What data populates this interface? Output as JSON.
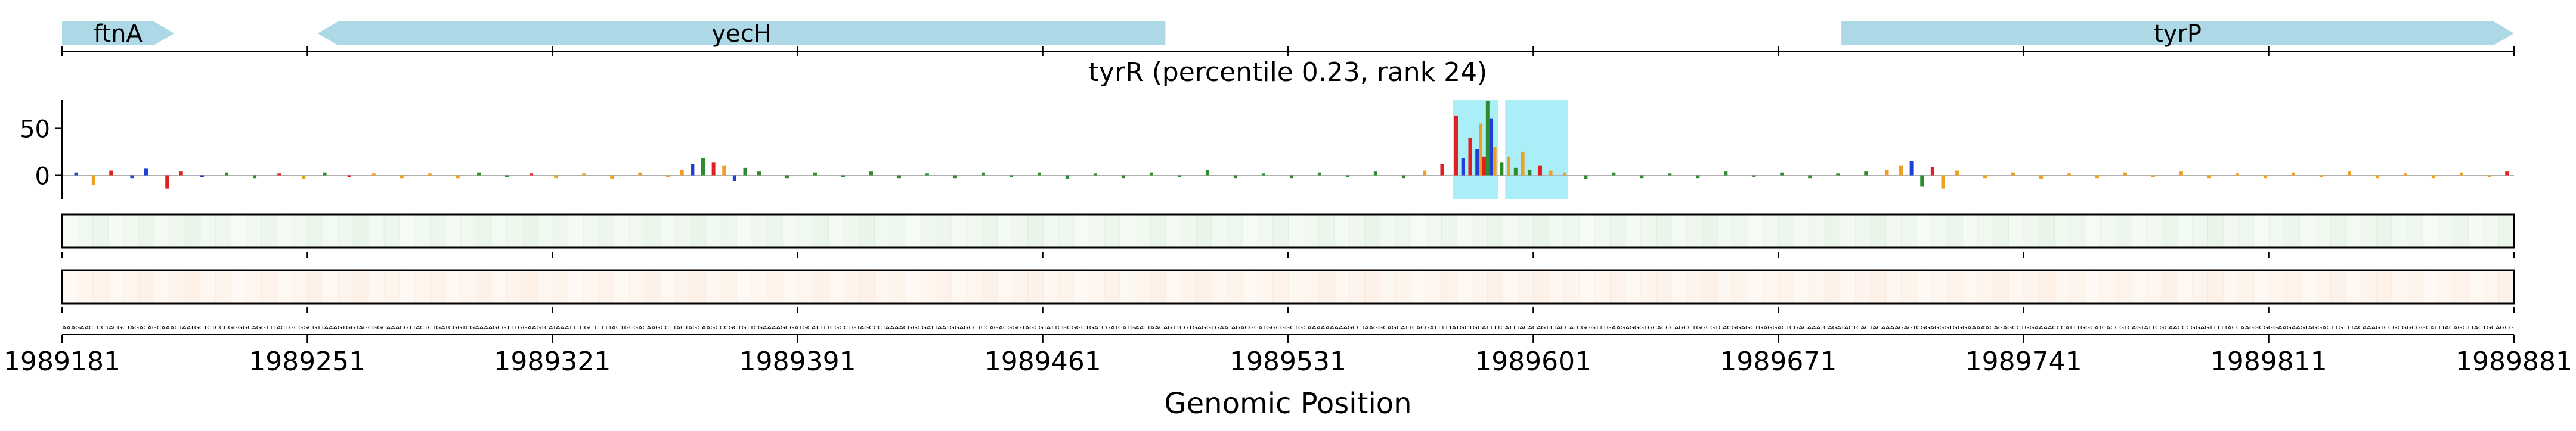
{
  "chart_data": {
    "type": "line",
    "title": "tyrR (percentile 0.23, rank 24)",
    "xlabel": "Genomic Position",
    "ylabel": "",
    "xlim": [
      1989181,
      1989881
    ],
    "ylim": [
      -25,
      80
    ],
    "x_ticks": [
      1989181,
      1989251,
      1989321,
      1989391,
      1989461,
      1989531,
      1989601,
      1989671,
      1989741,
      1989811,
      1989881
    ],
    "x_tick_labels": [
      "1989181",
      "1989251",
      "1989321",
      "1989391",
      "1989461",
      "1989531",
      "1989601",
      "1989671",
      "1989741",
      "1989811",
      "1989881"
    ],
    "y_ticks": [
      0,
      50
    ],
    "y_tick_labels": [
      "0",
      "50"
    ],
    "genes": [
      {
        "name": "ftnA",
        "start": 1989181,
        "end": 1989213,
        "strand": "+"
      },
      {
        "name": "yecH",
        "start": 1989254,
        "end": 1989496,
        "strand": "-"
      },
      {
        "name": "tyrP",
        "start": 1989689,
        "end": 1989881,
        "strand": "+"
      }
    ],
    "highlight_regions": [
      {
        "start": 1989578,
        "end": 1989591
      },
      {
        "start": 1989593,
        "end": 1989611
      }
    ],
    "series": [
      {
        "name": "attribution",
        "x": [
          1989185,
          1989190,
          1989195,
          1989201,
          1989205,
          1989211,
          1989215,
          1989221,
          1989228,
          1989236,
          1989243,
          1989250,
          1989256,
          1989263,
          1989270,
          1989278,
          1989286,
          1989294,
          1989300,
          1989308,
          1989315,
          1989322,
          1989330,
          1989338,
          1989346,
          1989354,
          1989358,
          1989361,
          1989364,
          1989367,
          1989370,
          1989373,
          1989376,
          1989380,
          1989388,
          1989396,
          1989404,
          1989412,
          1989420,
          1989428,
          1989436,
          1989444,
          1989452,
          1989460,
          1989468,
          1989476,
          1989484,
          1989492,
          1989500,
          1989508,
          1989516,
          1989524,
          1989532,
          1989540,
          1989548,
          1989556,
          1989564,
          1989570,
          1989575,
          1989579,
          1989581,
          1989583,
          1989585,
          1989586,
          1989587,
          1989588,
          1989589,
          1989590,
          1989592,
          1989594,
          1989596,
          1989598,
          1989600,
          1989603,
          1989606,
          1989610,
          1989616,
          1989624,
          1989632,
          1989640,
          1989648,
          1989656,
          1989664,
          1989672,
          1989680,
          1989688,
          1989696,
          1989702,
          1989706,
          1989709,
          1989712,
          1989715,
          1989718,
          1989722,
          1989730,
          1989738,
          1989746,
          1989754,
          1989762,
          1989770,
          1989778,
          1989786,
          1989794,
          1989802,
          1989810,
          1989818,
          1989826,
          1989834,
          1989842,
          1989850,
          1989858,
          1989866,
          1989874,
          1989879
        ],
        "y": [
          3,
          -10,
          5,
          -3,
          7,
          -14,
          4,
          -2,
          3,
          -3,
          2,
          -4,
          3,
          -2,
          2,
          -3,
          2,
          -3,
          3,
          -2,
          2,
          -3,
          2,
          -4,
          3,
          -2,
          6,
          12,
          18,
          14,
          10,
          -6,
          8,
          4,
          -3,
          3,
          -2,
          4,
          -3,
          2,
          -3,
          3,
          -2,
          3,
          -4,
          2,
          -3,
          3,
          -2,
          6,
          -3,
          2,
          -3,
          3,
          -2,
          4,
          -3,
          5,
          12,
          63,
          18,
          40,
          28,
          55,
          20,
          79,
          60,
          30,
          14,
          20,
          8,
          25,
          6,
          10,
          5,
          3,
          -4,
          3,
          -3,
          2,
          -3,
          4,
          -2,
          3,
          -3,
          2,
          4,
          6,
          10,
          15,
          -12,
          9,
          -14,
          5,
          -3,
          3,
          -4,
          2,
          -3,
          3,
          -2,
          4,
          -3,
          2,
          -3,
          3,
          -2,
          4,
          -3,
          2,
          -3,
          3,
          -2,
          4
        ]
      }
    ]
  },
  "tracks": {
    "track1_color": "#8bc98b",
    "track2_color": "#f4b27f"
  },
  "colors": {
    "gene_fill": "#add8e6",
    "highlight": "#8ee8f5",
    "base_a": "#2e8b2e",
    "base_c": "#1f3fd6",
    "base_g": "#f0a020",
    "base_t": "#e02020"
  },
  "sequence": "AAAGAACTCCTACGCTAGACAGCAAACTAATGCTCTCCCGGGGCAGGTTTACTGCGGCGTTAAAGTGGTAGCGGCAAACGTTACTCTGATCGGTCGAAAAGCGTTTGGAAGTCATAAATTTCGCTTTTTACTGCGACAAGCCTTACTAGCAAGCCCGCTGTTCGAAAAGCGATGCATTTTCGCCTGTAGCCCTAAAACGGCGATTAATGGAGCCTCCAGACGGGTAGCGTATTCGCGGCTGATCGATCATGAATTAACAGTTCGTGAGGTGAATAGACGCATGGCGGCTGCAAAAAAAAAGCCTAAGGCAGCATTCACGATTTTTATGCTGCATTTTCATTTACACAGTTTACCATCGGGTTTGAAGAGGGTGCACCCAGCCTGGCGTCACGGAGCTGAGGACTCGACAAATCAGATACTCACTACAAAAGAGTCGGAGGGTGGGAAAAACAGAGCCTGGAAAACCCATTTGGCATCACCGTCAGTATTCGCAACCCGGAGTTTTTACCAAGGCGGGAAGAAGTAGGACTTGTTTACAAAGTCCGCGGCGGCATTTACAGCTTACTGCAGCG"
}
